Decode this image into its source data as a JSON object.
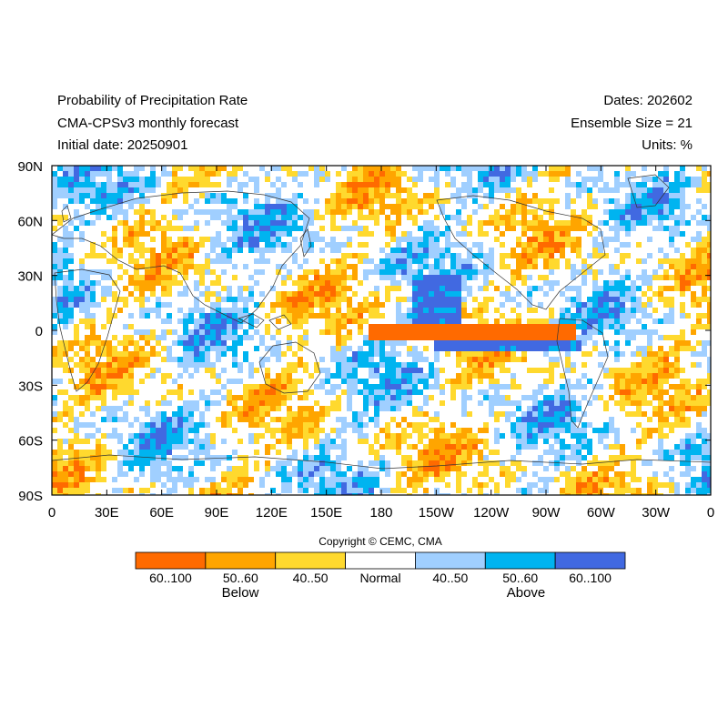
{
  "header": {
    "title": "Probability of Precipitation Rate",
    "model": "CMA-CPSv3 monthly forecast",
    "initial_date": "Initial date: 20250901",
    "dates": "Dates: 202602",
    "ensemble": "Ensemble Size = 21",
    "units": "Units: %"
  },
  "axes": {
    "lat_labels": [
      "90N",
      "60N",
      "30N",
      "0",
      "30S",
      "60S",
      "90S"
    ],
    "lon_labels": [
      "0",
      "30E",
      "60E",
      "90E",
      "120E",
      "150E",
      "180",
      "150W",
      "120W",
      "90W",
      "60W",
      "30W",
      "0"
    ]
  },
  "copyright": "Copyright © CEMC, CMA",
  "legend": {
    "bins": [
      {
        "label": "60..100",
        "color": "#FF6A00"
      },
      {
        "label": "50..60",
        "color": "#FFA500"
      },
      {
        "label": "40..50",
        "color": "#FFD92E"
      },
      {
        "label": "Normal",
        "color": "#FFFFFF"
      },
      {
        "label": "40..50",
        "color": "#A0CFFF"
      },
      {
        "label": "50..60",
        "color": "#00B4F0"
      },
      {
        "label": "60..100",
        "color": "#4169E1"
      }
    ],
    "below_label": "Below",
    "above_label": "Above"
  }
}
